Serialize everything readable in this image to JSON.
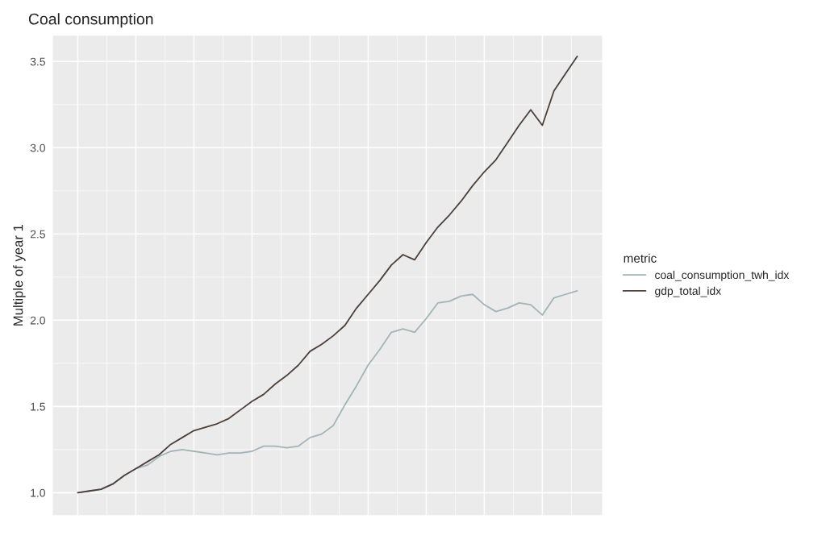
{
  "chart_data": {
    "type": "line",
    "title": "Coal consumption",
    "ylabel": "Multiple of year 1",
    "legend_title": "metric",
    "categories": [
      null,
      null,
      null,
      null,
      null,
      null,
      null,
      null,
      null,
      null,
      null,
      null,
      null,
      null,
      null,
      null,
      null,
      null,
      null,
      null,
      null,
      null,
      null,
      null,
      null,
      null,
      null,
      null,
      null,
      null,
      null,
      null,
      null,
      null,
      null,
      null,
      null,
      null,
      null,
      null,
      null,
      null,
      null,
      null
    ],
    "series": [
      {
        "name": "coal_consumption_twh_idx",
        "color": "#a3b4b8",
        "values": [
          1.0,
          1.01,
          1.02,
          1.05,
          1.1,
          1.14,
          1.16,
          1.21,
          1.24,
          1.25,
          1.24,
          1.23,
          1.22,
          1.23,
          1.23,
          1.24,
          1.27,
          1.27,
          1.26,
          1.27,
          1.32,
          1.34,
          1.39,
          1.51,
          1.62,
          1.74,
          1.83,
          1.93,
          1.95,
          1.93,
          2.01,
          2.1,
          2.11,
          2.14,
          2.15,
          2.09,
          2.05,
          2.07,
          2.1,
          2.09,
          2.03,
          2.13,
          2.15,
          2.17
        ]
      },
      {
        "name": "gdp_total_idx",
        "color": "#4d403a",
        "values": [
          1.0,
          1.01,
          1.02,
          1.05,
          1.1,
          1.14,
          1.18,
          1.22,
          1.28,
          1.32,
          1.36,
          1.38,
          1.4,
          1.43,
          1.48,
          1.53,
          1.57,
          1.63,
          1.68,
          1.74,
          1.82,
          1.86,
          1.91,
          1.97,
          2.07,
          2.15,
          2.23,
          2.32,
          2.38,
          2.35,
          2.45,
          2.54,
          2.61,
          2.69,
          2.78,
          2.86,
          2.93,
          3.03,
          3.13,
          3.22,
          3.13,
          3.33,
          3.43,
          3.53
        ]
      }
    ],
    "ylim": [
      0.87,
      3.65
    ],
    "yticks": [
      {
        "value": 1,
        "label": "1.0"
      },
      1.5,
      {
        "value": 2,
        "label": "2.0"
      },
      2.5,
      {
        "value": 3,
        "label": "3.0"
      },
      3.5
    ],
    "grid": true,
    "legend": "right",
    "marker": "none",
    "line_style": "solid"
  }
}
